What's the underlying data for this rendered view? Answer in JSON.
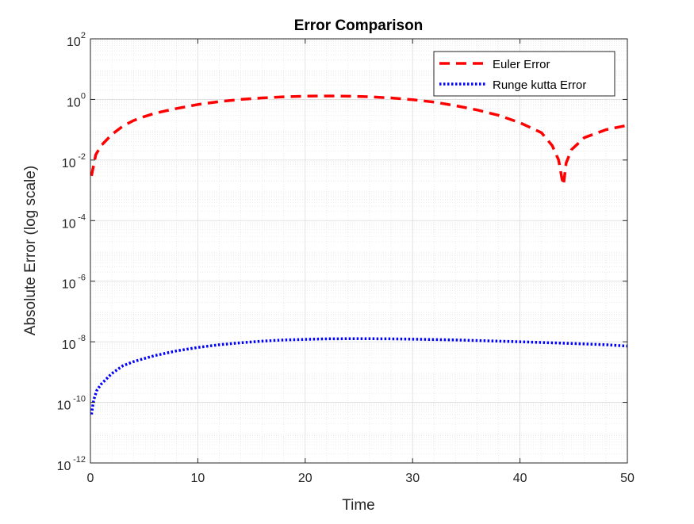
{
  "chart_data": {
    "type": "line",
    "title": "Error Comparison",
    "xlabel": "Time",
    "ylabel": "Absolute Error (log scale)",
    "xlim": [
      0,
      50
    ],
    "ylim": [
      1e-12,
      100
    ],
    "yscale": "log",
    "grid": true,
    "minor_grid": true,
    "legend_position": "top-right",
    "x_ticks": [
      "0",
      "10",
      "20",
      "30",
      "40",
      "50"
    ],
    "y_ticks": [
      {
        "base": "10",
        "exp": "2"
      },
      {
        "base": "10",
        "exp": "0"
      },
      {
        "base": "10",
        "exp": "-2"
      },
      {
        "base": "10",
        "exp": "-4"
      },
      {
        "base": "10",
        "exp": "-6"
      },
      {
        "base": "10",
        "exp": "-8"
      },
      {
        "base": "10",
        "exp": "-10"
      },
      {
        "base": "10",
        "exp": "-12"
      }
    ],
    "series": [
      {
        "name": "Euler Error",
        "color": "#ff0000",
        "style": "dashed",
        "points": [
          [
            0.1,
            0.003
          ],
          [
            0.5,
            0.015
          ],
          [
            1,
            0.03
          ],
          [
            2,
            0.07
          ],
          [
            3,
            0.13
          ],
          [
            4,
            0.2
          ],
          [
            5,
            0.27
          ],
          [
            6,
            0.35
          ],
          [
            8,
            0.5
          ],
          [
            10,
            0.68
          ],
          [
            12,
            0.85
          ],
          [
            14,
            1.0
          ],
          [
            16,
            1.12
          ],
          [
            18,
            1.22
          ],
          [
            20,
            1.28
          ],
          [
            22,
            1.3
          ],
          [
            24,
            1.28
          ],
          [
            26,
            1.22
          ],
          [
            28,
            1.12
          ],
          [
            30,
            0.98
          ],
          [
            32,
            0.82
          ],
          [
            34,
            0.62
          ],
          [
            36,
            0.45
          ],
          [
            38,
            0.3
          ],
          [
            40,
            0.17
          ],
          [
            42,
            0.08
          ],
          [
            43,
            0.03
          ],
          [
            43.6,
            0.01
          ],
          [
            43.9,
            0.0025
          ],
          [
            44.05,
            0.0015
          ],
          [
            44.3,
            0.008
          ],
          [
            44.8,
            0.022
          ],
          [
            46,
            0.055
          ],
          [
            48,
            0.1
          ],
          [
            50,
            0.14
          ]
        ]
      },
      {
        "name": "Runge kutta Error",
        "color": "#0000ff",
        "style": "dotted",
        "points": [
          [
            0.1,
            4e-11
          ],
          [
            0.3,
            1.2e-10
          ],
          [
            0.6,
            2.5e-10
          ],
          [
            1,
            4e-10
          ],
          [
            2,
            9e-10
          ],
          [
            3,
            1.6e-09
          ],
          [
            4,
            2.2e-09
          ],
          [
            5,
            2.8e-09
          ],
          [
            6,
            3.5e-09
          ],
          [
            8,
            5e-09
          ],
          [
            10,
            6.5e-09
          ],
          [
            12,
            8e-09
          ],
          [
            14,
            9.3e-09
          ],
          [
            16,
            1.05e-08
          ],
          [
            18,
            1.15e-08
          ],
          [
            20,
            1.2e-08
          ],
          [
            22,
            1.25e-08
          ],
          [
            25,
            1.27e-08
          ],
          [
            28,
            1.25e-08
          ],
          [
            30,
            1.22e-08
          ],
          [
            34,
            1.15e-08
          ],
          [
            38,
            1.05e-08
          ],
          [
            40,
            1e-08
          ],
          [
            44,
            9e-09
          ],
          [
            48,
            8e-09
          ],
          [
            50,
            7.2e-09
          ]
        ]
      }
    ]
  }
}
